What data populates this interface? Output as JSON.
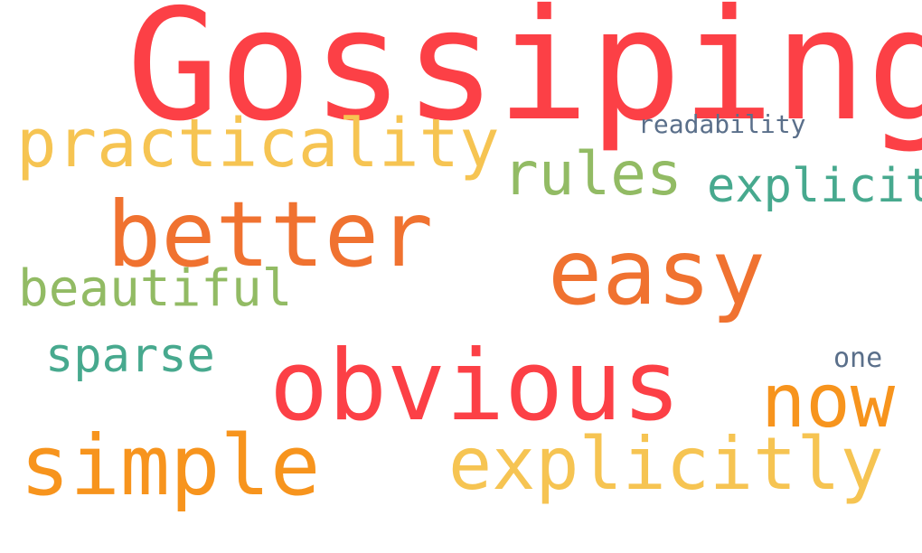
{
  "palette": {
    "red": "#fc4046",
    "orange": "#f07230",
    "amber": "#f7941d",
    "yellow": "#f6c452",
    "green": "#92bb64",
    "teal": "#47a98e",
    "slate": "#5a6f8a"
  },
  "words": [
    {
      "text": "Gossiping",
      "color": "red",
      "weight": 1.0
    },
    {
      "text": "obvious",
      "color": "red",
      "weight": 0.72
    },
    {
      "text": "better",
      "color": "orange",
      "weight": 0.65
    },
    {
      "text": "easy",
      "color": "orange",
      "weight": 0.65
    },
    {
      "text": "simple",
      "color": "amber",
      "weight": 0.6
    },
    {
      "text": "now",
      "color": "amber",
      "weight": 0.55
    },
    {
      "text": "explicitly",
      "color": "yellow",
      "weight": 0.55
    },
    {
      "text": "practicality",
      "color": "yellow",
      "weight": 0.5
    },
    {
      "text": "rules",
      "color": "green",
      "weight": 0.45
    },
    {
      "text": "beautiful",
      "color": "green",
      "weight": 0.4
    },
    {
      "text": "explicit",
      "color": "teal",
      "weight": 0.38
    },
    {
      "text": "sparse",
      "color": "teal",
      "weight": 0.38
    },
    {
      "text": "readability",
      "color": "slate",
      "weight": 0.25
    },
    {
      "text": "one",
      "color": "slate",
      "weight": 0.25
    }
  ]
}
